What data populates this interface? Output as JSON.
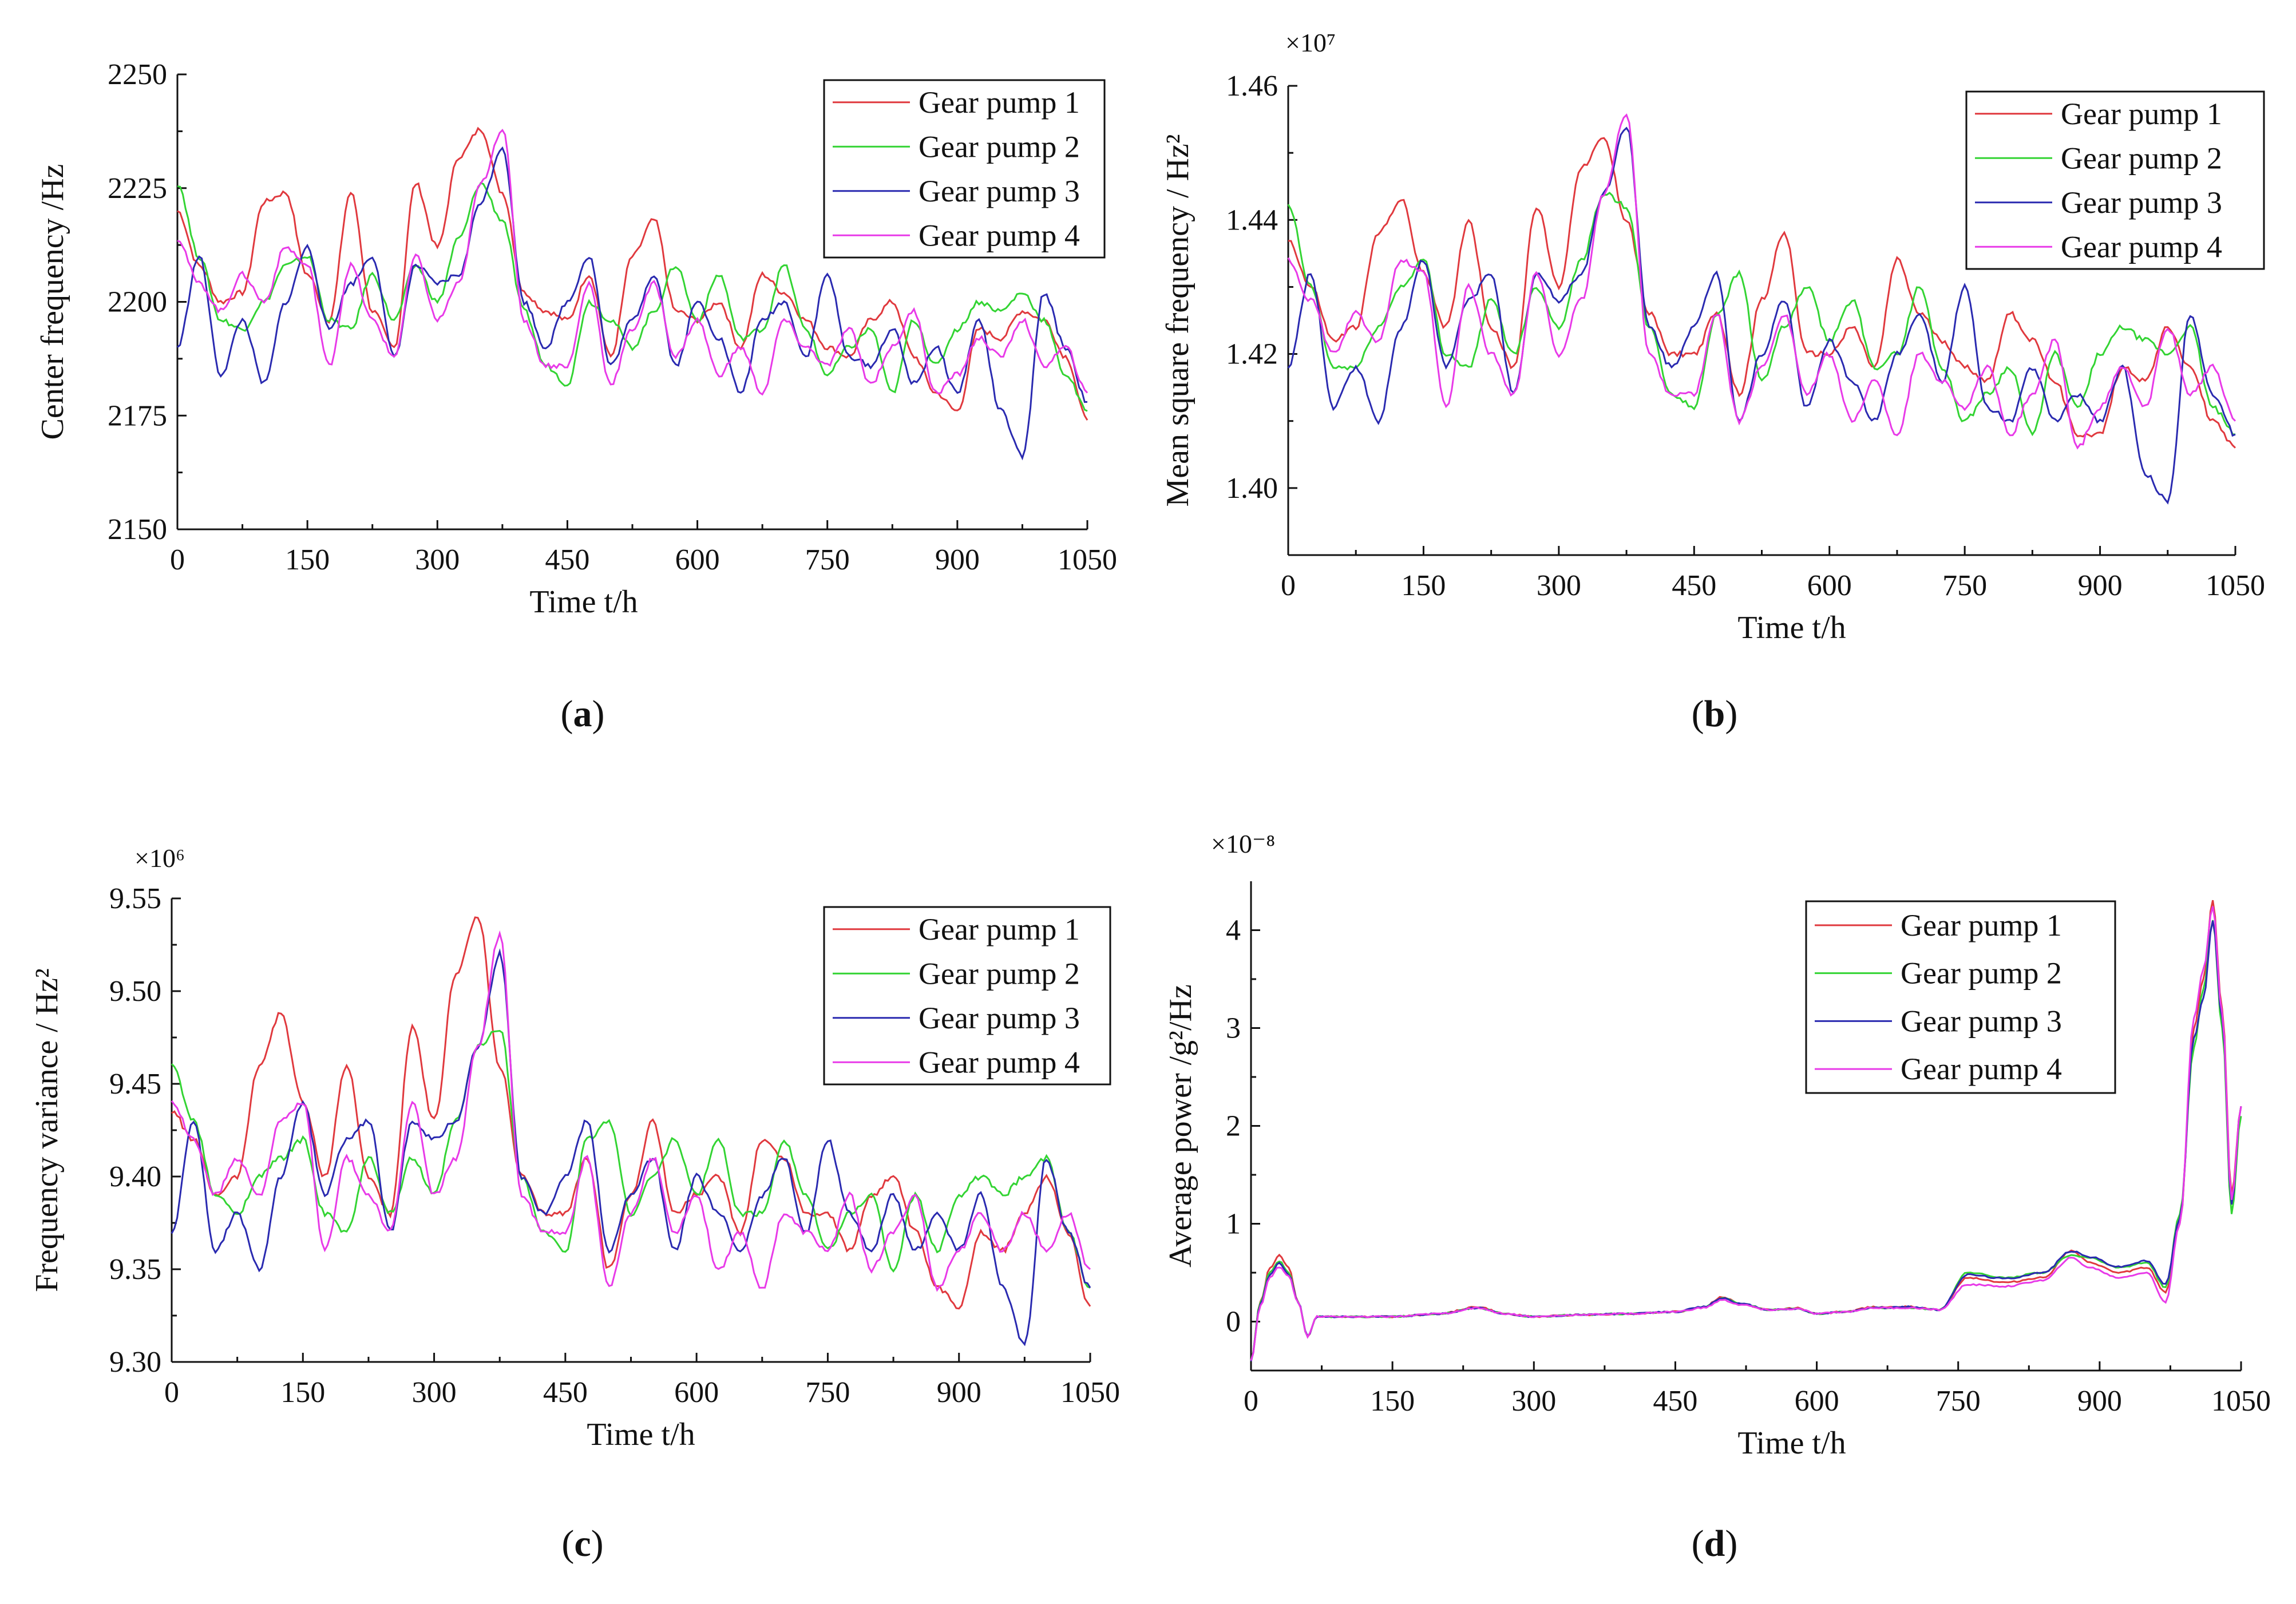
{
  "figure": {
    "captions": [
      "(a)",
      "(b)",
      "(c)",
      "(d)"
    ],
    "caption_letters": [
      "a",
      "b",
      "c",
      "d"
    ]
  },
  "legend_entries": [
    "Gear pump 1",
    "Gear pump 2",
    "Gear pump 3",
    "Gear pump 4"
  ],
  "colors": {
    "gear_pump_1": "#e0393e",
    "gear_pump_2": "#33d433",
    "gear_pump_3": "#2a2ab0",
    "gear_pump_4": "#e83ae8"
  },
  "chart_data": [
    {
      "id": "a",
      "type": "line",
      "title": "",
      "xlabel": "Time t/h",
      "ylabel": "Center frequency /Hz",
      "multiplier": "",
      "xlim": [
        0,
        1050
      ],
      "ylim": [
        2150,
        2250
      ],
      "xticks": [
        0,
        150,
        300,
        450,
        600,
        750,
        900,
        1050
      ],
      "yticks": [
        2150,
        2175,
        2200,
        2225,
        2250
      ],
      "ytick_labels": [
        "2150",
        "2175",
        "2200",
        "2225",
        "2250"
      ],
      "legend_position": "top-right",
      "x": [
        0,
        25,
        50,
        75,
        100,
        125,
        150,
        175,
        200,
        225,
        250,
        275,
        300,
        325,
        350,
        375,
        400,
        425,
        450,
        475,
        500,
        525,
        550,
        575,
        600,
        625,
        650,
        675,
        700,
        725,
        750,
        775,
        800,
        825,
        850,
        875,
        900,
        925,
        950,
        975,
        1000,
        1025,
        1050
      ],
      "series": [
        {
          "name": "Gear pump 1",
          "values": [
            2220,
            2208,
            2200,
            2202,
            2222,
            2224,
            2206,
            2196,
            2224,
            2198,
            2190,
            2226,
            2212,
            2232,
            2238,
            2224,
            2202,
            2198,
            2196,
            2206,
            2188,
            2210,
            2218,
            2198,
            2196,
            2200,
            2190,
            2206,
            2202,
            2196,
            2190,
            2188,
            2196,
            2200,
            2188,
            2180,
            2176,
            2194,
            2192,
            2198,
            2196,
            2188,
            2174
          ]
        },
        {
          "name": "Gear pump 2",
          "values": [
            2226,
            2210,
            2196,
            2194,
            2200,
            2208,
            2210,
            2196,
            2194,
            2206,
            2196,
            2208,
            2200,
            2214,
            2226,
            2218,
            2198,
            2186,
            2182,
            2200,
            2196,
            2190,
            2198,
            2208,
            2196,
            2206,
            2192,
            2194,
            2208,
            2194,
            2184,
            2190,
            2194,
            2180,
            2196,
            2186,
            2194,
            2200,
            2198,
            2202,
            2196,
            2184,
            2176
          ]
        },
        {
          "name": "Gear pump 3",
          "values": [
            2190,
            2210,
            2184,
            2196,
            2182,
            2200,
            2212,
            2194,
            2204,
            2210,
            2188,
            2208,
            2204,
            2206,
            2222,
            2234,
            2200,
            2190,
            2200,
            2210,
            2186,
            2196,
            2206,
            2186,
            2200,
            2192,
            2180,
            2196,
            2200,
            2188,
            2206,
            2188,
            2186,
            2194,
            2182,
            2190,
            2180,
            2196,
            2176,
            2166,
            2202,
            2190,
            2178
          ]
        },
        {
          "name": "Gear pump 4",
          "values": [
            2214,
            2204,
            2198,
            2206,
            2200,
            2212,
            2208,
            2186,
            2208,
            2196,
            2188,
            2210,
            2196,
            2204,
            2226,
            2238,
            2196,
            2186,
            2186,
            2204,
            2182,
            2194,
            2204,
            2188,
            2196,
            2184,
            2190,
            2180,
            2196,
            2190,
            2186,
            2194,
            2182,
            2190,
            2198,
            2180,
            2184,
            2192,
            2188,
            2196,
            2186,
            2190,
            2180
          ]
        }
      ]
    },
    {
      "id": "b",
      "type": "line",
      "title": "",
      "xlabel": "Time t/h",
      "ylabel": "Mean square frequency / Hz²",
      "multiplier": "×10⁷",
      "xlim": [
        0,
        1050
      ],
      "ylim": [
        1.39,
        1.46
      ],
      "xticks": [
        0,
        150,
        300,
        450,
        600,
        750,
        900,
        1050
      ],
      "yticks": [
        1.4,
        1.42,
        1.44,
        1.46
      ],
      "ytick_labels": [
        "1.40",
        "1.42",
        "1.44",
        "1.46"
      ],
      "legend_position": "top-right",
      "x": [
        0,
        25,
        50,
        75,
        100,
        125,
        150,
        175,
        200,
        225,
        250,
        275,
        300,
        325,
        350,
        375,
        400,
        425,
        450,
        475,
        500,
        525,
        550,
        575,
        600,
        625,
        650,
        675,
        700,
        725,
        750,
        775,
        800,
        825,
        850,
        875,
        900,
        925,
        950,
        975,
        1000,
        1025,
        1050
      ],
      "series": [
        {
          "name": "Gear pump 1",
          "values": [
            1.437,
            1.43,
            1.422,
            1.424,
            1.438,
            1.443,
            1.432,
            1.424,
            1.44,
            1.424,
            1.418,
            1.442,
            1.43,
            1.448,
            1.452,
            1.44,
            1.426,
            1.42,
            1.42,
            1.426,
            1.414,
            1.428,
            1.438,
            1.42,
            1.42,
            1.424,
            1.418,
            1.434,
            1.426,
            1.422,
            1.418,
            1.416,
            1.426,
            1.422,
            1.416,
            1.408,
            1.408,
            1.418,
            1.416,
            1.424,
            1.418,
            1.41,
            1.406
          ]
        },
        {
          "name": "Gear pump 2",
          "values": [
            1.442,
            1.43,
            1.418,
            1.418,
            1.424,
            1.43,
            1.434,
            1.42,
            1.418,
            1.428,
            1.42,
            1.43,
            1.424,
            1.434,
            1.444,
            1.442,
            1.424,
            1.414,
            1.412,
            1.426,
            1.432,
            1.416,
            1.424,
            1.43,
            1.422,
            1.428,
            1.418,
            1.42,
            1.43,
            1.418,
            1.41,
            1.414,
            1.418,
            1.408,
            1.42,
            1.412,
            1.42,
            1.424,
            1.422,
            1.42,
            1.424,
            1.412,
            1.408
          ]
        },
        {
          "name": "Gear pump 3",
          "values": [
            1.418,
            1.432,
            1.412,
            1.418,
            1.41,
            1.424,
            1.434,
            1.418,
            1.428,
            1.432,
            1.414,
            1.432,
            1.428,
            1.432,
            1.444,
            1.454,
            1.424,
            1.418,
            1.424,
            1.432,
            1.41,
            1.42,
            1.428,
            1.412,
            1.422,
            1.416,
            1.41,
            1.42,
            1.426,
            1.416,
            1.43,
            1.412,
            1.41,
            1.418,
            1.41,
            1.414,
            1.41,
            1.418,
            1.402,
            1.398,
            1.426,
            1.414,
            1.408
          ]
        },
        {
          "name": "Gear pump 4",
          "values": [
            1.434,
            1.428,
            1.42,
            1.426,
            1.422,
            1.434,
            1.432,
            1.412,
            1.43,
            1.42,
            1.414,
            1.432,
            1.42,
            1.428,
            1.444,
            1.456,
            1.42,
            1.414,
            1.414,
            1.426,
            1.41,
            1.418,
            1.426,
            1.414,
            1.42,
            1.41,
            1.416,
            1.408,
            1.42,
            1.416,
            1.412,
            1.418,
            1.408,
            1.414,
            1.422,
            1.406,
            1.412,
            1.418,
            1.412,
            1.424,
            1.414,
            1.418,
            1.41
          ]
        }
      ]
    },
    {
      "id": "c",
      "type": "line",
      "title": "",
      "xlabel": "Time t/h",
      "ylabel": "Frequency variance / Hz²",
      "multiplier": "×10⁶",
      "xlim": [
        0,
        1050
      ],
      "ylim": [
        9.3,
        9.55
      ],
      "xticks": [
        0,
        150,
        300,
        450,
        600,
        750,
        900,
        1050
      ],
      "yticks": [
        9.3,
        9.35,
        9.4,
        9.45,
        9.5,
        9.55
      ],
      "ytick_labels": [
        "9.30",
        "9.35",
        "9.40",
        "9.45",
        "9.50",
        "9.55"
      ],
      "legend_position": "top-right",
      "x": [
        0,
        25,
        50,
        75,
        100,
        125,
        150,
        175,
        200,
        225,
        250,
        275,
        300,
        325,
        350,
        375,
        400,
        425,
        450,
        475,
        500,
        525,
        550,
        575,
        600,
        625,
        650,
        675,
        700,
        725,
        750,
        775,
        800,
        825,
        850,
        875,
        900,
        925,
        950,
        975,
        1000,
        1025,
        1050
      ],
      "series": [
        {
          "name": "Gear pump 1",
          "values": [
            9.435,
            9.42,
            9.39,
            9.4,
            9.46,
            9.488,
            9.44,
            9.4,
            9.46,
            9.4,
            9.38,
            9.48,
            9.43,
            9.51,
            9.54,
            9.46,
            9.4,
            9.38,
            9.38,
            9.41,
            9.35,
            9.39,
            9.43,
            9.38,
            9.39,
            9.4,
            9.37,
            9.42,
            9.41,
            9.38,
            9.38,
            9.36,
            9.39,
            9.4,
            9.37,
            9.34,
            9.33,
            9.37,
            9.36,
            9.38,
            9.4,
            9.37,
            9.33
          ]
        },
        {
          "name": "Gear pump 2",
          "values": [
            9.46,
            9.43,
            9.39,
            9.38,
            9.4,
            9.41,
            9.42,
            9.38,
            9.37,
            9.41,
            9.38,
            9.41,
            9.39,
            9.43,
            9.47,
            9.48,
            9.4,
            9.37,
            9.36,
            9.42,
            9.43,
            9.38,
            9.4,
            9.42,
            9.39,
            9.42,
            9.38,
            9.38,
            9.42,
            9.39,
            9.36,
            9.38,
            9.39,
            9.35,
            9.39,
            9.36,
            9.39,
            9.4,
            9.39,
            9.4,
            9.41,
            9.37,
            9.34
          ]
        },
        {
          "name": "Gear pump 3",
          "values": [
            9.37,
            9.43,
            9.36,
            9.38,
            9.35,
            9.4,
            9.44,
            9.39,
            9.42,
            9.43,
            9.37,
            9.43,
            9.42,
            9.43,
            9.47,
            9.52,
            9.4,
            9.38,
            9.4,
            9.43,
            9.36,
            9.39,
            9.41,
            9.36,
            9.4,
            9.38,
            9.36,
            9.39,
            9.41,
            9.37,
            9.42,
            9.38,
            9.36,
            9.39,
            9.36,
            9.38,
            9.36,
            9.39,
            9.34,
            9.31,
            9.41,
            9.37,
            9.34
          ]
        },
        {
          "name": "Gear pump 4",
          "values": [
            9.44,
            9.42,
            9.39,
            9.41,
            9.39,
            9.43,
            9.44,
            9.36,
            9.41,
            9.39,
            9.37,
            9.44,
            9.39,
            9.41,
            9.47,
            9.53,
            9.39,
            9.37,
            9.37,
            9.41,
            9.34,
            9.38,
            9.41,
            9.37,
            9.39,
            9.35,
            9.37,
            9.34,
            9.38,
            9.37,
            9.36,
            9.39,
            9.35,
            9.37,
            9.39,
            9.34,
            9.36,
            9.38,
            9.36,
            9.38,
            9.36,
            9.38,
            9.35
          ]
        }
      ]
    },
    {
      "id": "d",
      "type": "line",
      "title": "",
      "xlabel": "Time t/h",
      "ylabel": "Average power /g²/Hz",
      "multiplier": "×10⁻⁸",
      "xlim": [
        0,
        1050
      ],
      "ylim": [
        -0.5,
        4.5
      ],
      "xticks": [
        0,
        150,
        300,
        450,
        600,
        750,
        900,
        1050
      ],
      "yticks": [
        0,
        1,
        2,
        3,
        4
      ],
      "ytick_labels": [
        "0",
        "1",
        "2",
        "3",
        "4"
      ],
      "legend_position": "top-right",
      "x": [
        0,
        10,
        20,
        30,
        40,
        50,
        60,
        70,
        100,
        150,
        200,
        240,
        270,
        300,
        350,
        400,
        450,
        480,
        500,
        520,
        550,
        580,
        600,
        630,
        660,
        700,
        730,
        760,
        800,
        840,
        870,
        890,
        920,
        950,
        970,
        985,
        1000,
        1010,
        1020,
        1030,
        1040,
        1050
      ],
      "series": [
        {
          "name": "Gear pump 1",
          "values": [
            -0.4,
            0.2,
            0.55,
            0.68,
            0.55,
            0.2,
            -0.15,
            0.05,
            0.05,
            0.05,
            0.08,
            0.15,
            0.08,
            0.05,
            0.07,
            0.08,
            0.1,
            0.15,
            0.25,
            0.18,
            0.12,
            0.14,
            0.08,
            0.1,
            0.15,
            0.15,
            0.12,
            0.45,
            0.4,
            0.45,
            0.72,
            0.6,
            0.5,
            0.55,
            0.3,
            1.0,
            3.0,
            3.5,
            4.3,
            3.2,
            1.3,
            2.2
          ]
        },
        {
          "name": "Gear pump 2",
          "values": [
            -0.4,
            0.2,
            0.5,
            0.62,
            0.5,
            0.2,
            -0.15,
            0.05,
            0.05,
            0.05,
            0.08,
            0.14,
            0.08,
            0.05,
            0.07,
            0.08,
            0.1,
            0.15,
            0.24,
            0.18,
            0.12,
            0.13,
            0.08,
            0.1,
            0.14,
            0.14,
            0.12,
            0.5,
            0.45,
            0.5,
            0.68,
            0.65,
            0.55,
            0.6,
            0.35,
            1.1,
            2.8,
            3.4,
            4.1,
            3.0,
            1.1,
            2.1
          ]
        },
        {
          "name": "Gear pump 3",
          "values": [
            -0.4,
            0.18,
            0.48,
            0.6,
            0.48,
            0.2,
            -0.15,
            0.05,
            0.05,
            0.05,
            0.08,
            0.14,
            0.08,
            0.05,
            0.07,
            0.08,
            0.1,
            0.15,
            0.24,
            0.18,
            0.12,
            0.13,
            0.08,
            0.1,
            0.14,
            0.15,
            0.12,
            0.48,
            0.44,
            0.5,
            0.72,
            0.66,
            0.56,
            0.62,
            0.38,
            1.05,
            2.9,
            3.3,
            4.1,
            3.1,
            1.2,
            2.2
          ]
        },
        {
          "name": "Gear pump 4",
          "values": [
            -0.4,
            0.16,
            0.45,
            0.56,
            0.46,
            0.2,
            -0.15,
            0.05,
            0.05,
            0.05,
            0.08,
            0.14,
            0.08,
            0.05,
            0.07,
            0.08,
            0.1,
            0.14,
            0.22,
            0.17,
            0.12,
            0.13,
            0.08,
            0.1,
            0.14,
            0.14,
            0.12,
            0.38,
            0.36,
            0.42,
            0.65,
            0.55,
            0.45,
            0.5,
            0.2,
            1.0,
            3.1,
            3.6,
            4.25,
            3.15,
            1.25,
            2.2
          ]
        }
      ]
    }
  ]
}
